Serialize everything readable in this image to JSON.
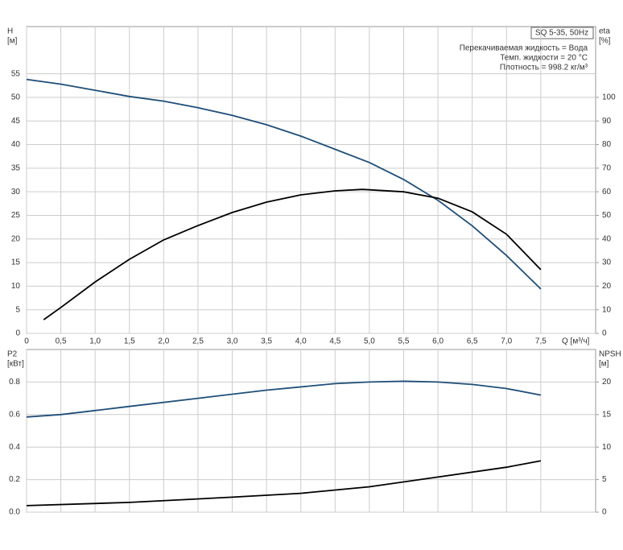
{
  "chart_data": [
    {
      "type": "line",
      "title": "SQ 5-35, 50Hz",
      "annotations": [
        "Перекачиваемая жидкость = Вода",
        "Темп. жидкости = 20 °C",
        "Плотность = 998.2 кг/м³"
      ],
      "ylabel": "H",
      "yunit": "[м]",
      "y2label": "eta",
      "y2unit": "[%]",
      "xlabel": "Q [м³/ч]",
      "xlim": [
        0,
        8.3
      ],
      "xticks": [
        0,
        {
          "value": 0.5,
          "label": "0,5"
        },
        {
          "value": 1,
          "label": "1,0"
        },
        {
          "value": 1.5,
          "label": "1,5"
        },
        {
          "value": 2,
          "label": "2,0"
        },
        {
          "value": 2.5,
          "label": "2,5"
        },
        {
          "value": 3,
          "label": "3,0"
        },
        {
          "value": 3.5,
          "label": "3,5"
        },
        {
          "value": 4,
          "label": "4,0"
        },
        {
          "value": 4.5,
          "label": "4,5"
        },
        {
          "value": 5,
          "label": "5,0"
        },
        {
          "value": 5.5,
          "label": "5,5"
        },
        {
          "value": 6,
          "label": "6,0"
        },
        {
          "value": 6.5,
          "label": "6,5"
        },
        {
          "value": 7,
          "label": "7,0"
        },
        {
          "value": 7.5,
          "label": "7,5"
        }
      ],
      "ylim": [
        0,
        65
      ],
      "yticks": [
        0,
        5,
        10,
        15,
        20,
        25,
        30,
        35,
        40,
        45,
        50,
        55
      ],
      "y2lim": [
        0,
        130
      ],
      "y2ticks": [
        0,
        10,
        20,
        30,
        40,
        50,
        60,
        70,
        80,
        90,
        100
      ],
      "grid": true,
      "series": [
        {
          "color": "#1f4e79",
          "x": [
            0,
            0.5,
            1,
            1.5,
            2,
            2.5,
            3,
            3.5,
            4,
            4.5,
            5,
            5.5,
            6,
            6.5,
            7,
            7.5
          ],
          "values": [
            53.8,
            52.8,
            51.5,
            50.2,
            49.2,
            47.8,
            46.2,
            44.2,
            41.8,
            39.0,
            36.2,
            32.6,
            28.2,
            22.8,
            16.5,
            9.4
          ]
        },
        {
          "color": "#000000",
          "axis": "y2",
          "x": [
            0.25,
            0.5,
            1,
            1.5,
            2,
            2.5,
            3,
            3.5,
            4,
            4.5,
            4.9,
            5.5,
            6,
            6.5,
            7,
            7.5
          ],
          "values": [
            5.8,
            11,
            21.8,
            31.4,
            39.6,
            45.7,
            51.2,
            55.6,
            58.7,
            60.4,
            61,
            60,
            57.3,
            51.5,
            42,
            27
          ]
        }
      ]
    },
    {
      "type": "line",
      "ylabel": "P2",
      "yunit": "[кВт]",
      "y2label": "NPSH",
      "y2unit": "[м]",
      "xlim": [
        0,
        8.3
      ],
      "ylim": [
        0,
        1
      ],
      "yticks": [
        {
          "value": 0,
          "label": "0.0"
        },
        0.2,
        0.4,
        0.6,
        0.8
      ],
      "y2lim": [
        0,
        25
      ],
      "y2ticks": [
        0,
        5,
        10,
        15,
        20
      ],
      "grid": true,
      "series": [
        {
          "color": "#1f4e79",
          "x": [
            0,
            0.5,
            1,
            1.5,
            2.5,
            3.5,
            4.5,
            5,
            5.5,
            6,
            6.5,
            7,
            7.5
          ],
          "values": [
            0.585,
            0.6,
            0.625,
            0.65,
            0.7,
            0.75,
            0.79,
            0.8,
            0.805,
            0.8,
            0.785,
            0.76,
            0.72
          ]
        },
        {
          "color": "#000000",
          "axis": "y2",
          "x": [
            0,
            1.5,
            3,
            4,
            5,
            6,
            7,
            7.5
          ],
          "values": [
            1.0,
            1.5,
            2.3,
            2.9,
            3.9,
            5.4,
            6.9,
            7.9
          ]
        }
      ]
    }
  ]
}
